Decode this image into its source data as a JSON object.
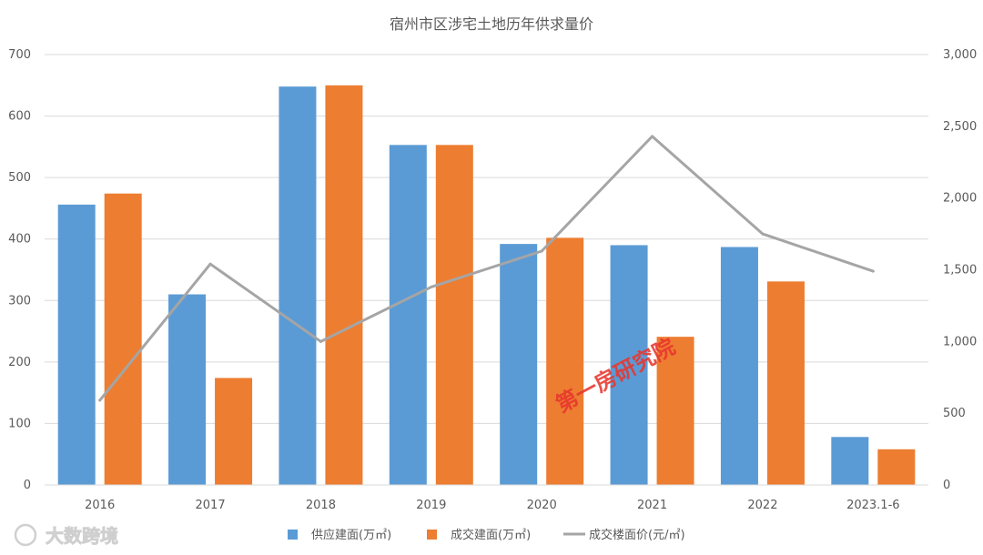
{
  "chart_data": {
    "type": "bar",
    "title": "宿州市区涉宅土地历年供求量价",
    "categories": [
      "2016",
      "2017",
      "2018",
      "2019",
      "2020",
      "2021",
      "2022",
      "2023.1-6"
    ],
    "series": [
      {
        "name": "供应建面(万㎡)",
        "type": "bar",
        "axis": "left",
        "color": "#5b9bd5",
        "values": [
          456,
          310,
          648,
          553,
          392,
          390,
          387,
          78
        ]
      },
      {
        "name": "成交建面(万㎡)",
        "type": "bar",
        "axis": "left",
        "color": "#ed7d31",
        "values": [
          474,
          174,
          650,
          553,
          402,
          241,
          331,
          58
        ]
      },
      {
        "name": "成交楼面价(元/㎡)",
        "type": "line",
        "axis": "right",
        "color": "#a5a5a5",
        "values": [
          590,
          1540,
          1000,
          1380,
          1630,
          2430,
          1750,
          1490
        ]
      }
    ],
    "y_left": {
      "min": 0,
      "max": 700,
      "step": 100,
      "ticks": [
        "0",
        "100",
        "200",
        "300",
        "400",
        "500",
        "600",
        "700"
      ]
    },
    "y_right": {
      "min": 0,
      "max": 3000,
      "step": 500,
      "ticks": [
        "0",
        "500",
        "1,000",
        "1,500",
        "2,000",
        "2,500",
        "3,000"
      ]
    },
    "grid": true,
    "legend_position": "bottom"
  },
  "watermark": {
    "text": "第一房研究院"
  },
  "brand": {
    "text": "大数跨境"
  }
}
